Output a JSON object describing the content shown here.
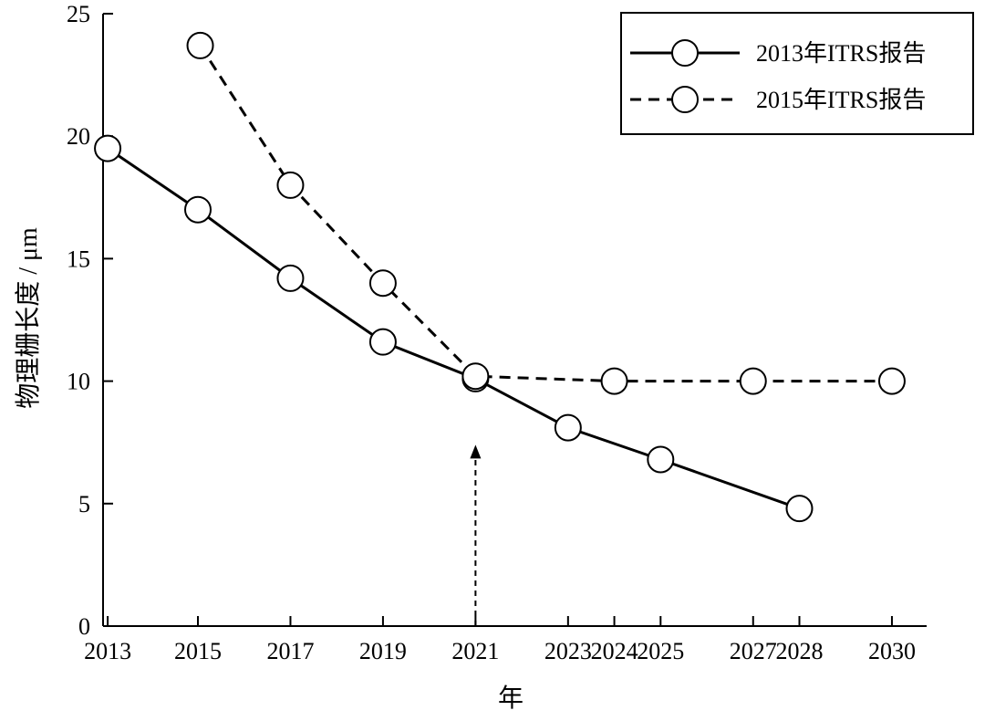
{
  "chart_data": {
    "type": "line",
    "categories": [
      "2013",
      "2015",
      "2017",
      "2019",
      "2021",
      "2023",
      "2024",
      "2025",
      "2027",
      "2028",
      "2030"
    ],
    "x": [
      2013.1,
      2015.05,
      2017.05,
      2019.05,
      2021.05,
      2023.05,
      2024.05,
      2025.05,
      2027.05,
      2028.05,
      2030.05
    ],
    "series": [
      {
        "name": "2013年ITRS报告",
        "style": "solid",
        "x": [
          2013.1,
          2015.05,
          2017.05,
          2019.05,
          2021.05,
          2023.05,
          2025.05,
          2028.05
        ],
        "values": [
          19.5,
          17.0,
          14.2,
          11.6,
          10.1,
          8.1,
          6.8,
          4.8
        ]
      },
      {
        "name": "2015年ITRS报告",
        "style": "dashed",
        "x": [
          2015.1,
          2017.05,
          2019.05,
          2021.05,
          2024.05,
          2027.05,
          2030.05
        ],
        "values": [
          23.7,
          18.0,
          14.0,
          10.2,
          10.0,
          10.0,
          10.0
        ]
      }
    ],
    "y_ticks": [
      "0",
      "5",
      "10",
      "15",
      "20",
      "25"
    ],
    "ylim": [
      0,
      25
    ],
    "xlabel": "年",
    "ylabel": "物理栅长度 / μm",
    "grid": false,
    "legend_position": "top-right",
    "annotation": {
      "type": "dashed-arrow",
      "x": 2021.05,
      "from_y": 0,
      "to_y": 7.4
    },
    "colors": {
      "line": "#000000",
      "marker_fill": "#ffffff"
    }
  }
}
